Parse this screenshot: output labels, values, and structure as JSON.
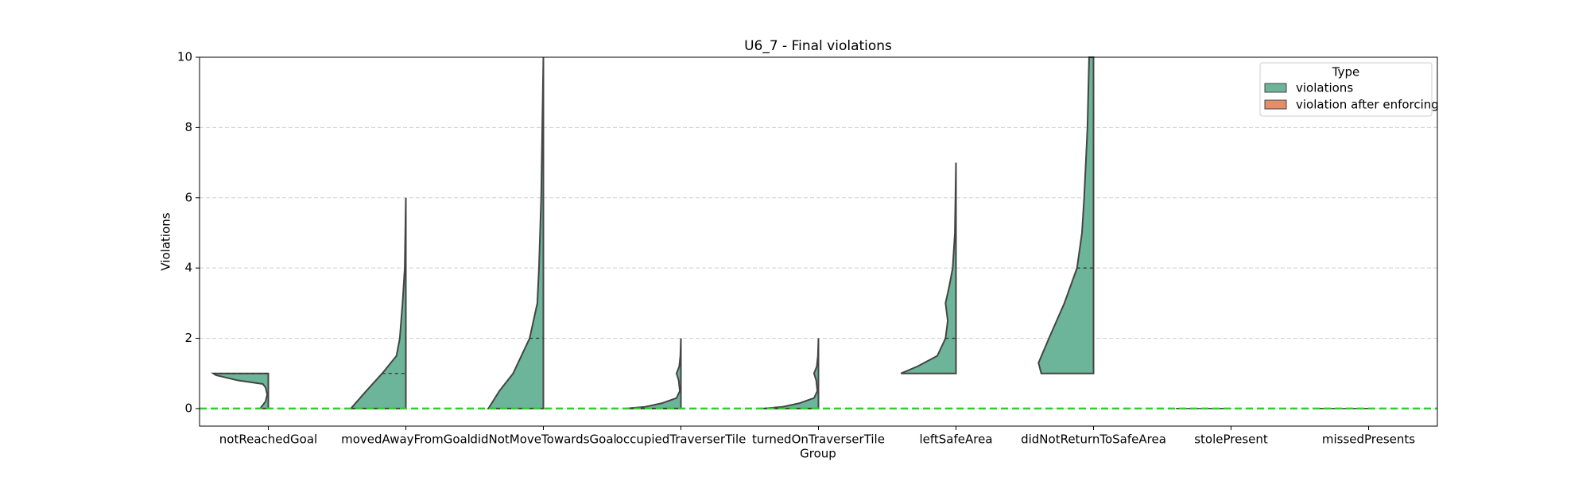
{
  "chart_data": {
    "type": "violin",
    "title": "U6_7 - Final violations",
    "x_label": "Group",
    "y_label": "Violations",
    "categories": [
      "notReachedGoal",
      "movedAwayFromGoal",
      "didNotMoveTowardsGoal",
      "occupiedTraverserTile",
      "turnedOnTraverserTile",
      "leftSafeArea",
      "didNotReturnToSafeArea",
      "stolePresent",
      "missedPresents"
    ],
    "ylim": [
      -0.5,
      10
    ],
    "yticks": [
      0,
      2,
      4,
      6,
      8,
      10
    ],
    "grid": true,
    "hline": {
      "value": 0,
      "color": "#33cc33"
    },
    "legend": {
      "title": "Type",
      "position": "upper right"
    },
    "series": [
      {
        "name": "violations",
        "color": "#6db59a",
        "violins": [
          {
            "y": [
              0,
              0.2,
              0.4,
              0.6,
              0.7,
              0.8,
              0.95,
              1
            ],
            "density": [
              0.15,
              0.05,
              0.02,
              0.05,
              0.1,
              0.55,
              0.95,
              1
            ],
            "median": 1
          },
          {
            "y": [
              0,
              0.5,
              1,
              1.5,
              2,
              3,
              4,
              5,
              6
            ],
            "density": [
              1,
              0.72,
              0.43,
              0.17,
              0.11,
              0.06,
              0.02,
              0.01,
              0
            ],
            "median": 1
          },
          {
            "y": [
              0,
              0.5,
              1,
              2,
              3,
              4,
              5,
              6,
              8,
              10
            ],
            "density": [
              1,
              0.8,
              0.55,
              0.25,
              0.11,
              0.08,
              0.06,
              0.04,
              0.02,
              0
            ],
            "median": 2
          },
          {
            "y": [
              0,
              0.05,
              0.15,
              0.3,
              0.5,
              0.8,
              1,
              1.2,
              1.5,
              2
            ],
            "density": [
              1,
              0.65,
              0.35,
              0.08,
              0.02,
              0.04,
              0.08,
              0.03,
              0.01,
              0
            ],
            "median": 0
          },
          {
            "y": [
              0,
              0.05,
              0.15,
              0.3,
              0.5,
              0.8,
              1,
              1.2,
              1.5,
              2
            ],
            "density": [
              1,
              0.65,
              0.35,
              0.08,
              0.02,
              0.04,
              0.08,
              0.03,
              0.01,
              0
            ],
            "median": 0
          },
          {
            "y": [
              1,
              1.2,
              1.5,
              2,
              2.5,
              3,
              3.5,
              4,
              5,
              7
            ],
            "density": [
              1,
              0.7,
              0.34,
              0.19,
              0.15,
              0.19,
              0.12,
              0.06,
              0.02,
              0
            ],
            "median": 2
          },
          {
            "y": [
              1,
              1.3,
              2,
              3,
              4,
              5,
              6,
              8,
              10
            ],
            "density": [
              0.95,
              1,
              0.81,
              0.53,
              0.3,
              0.21,
              0.17,
              0.11,
              0.08
            ],
            "median": 4
          },
          {
            "y": [
              0
            ],
            "density": [
              1
            ],
            "median": 0
          },
          {
            "y": [
              0
            ],
            "density": [
              1
            ],
            "median": 0
          }
        ]
      },
      {
        "name": "violation after enforcing",
        "color": "#e58e6a"
      }
    ]
  }
}
